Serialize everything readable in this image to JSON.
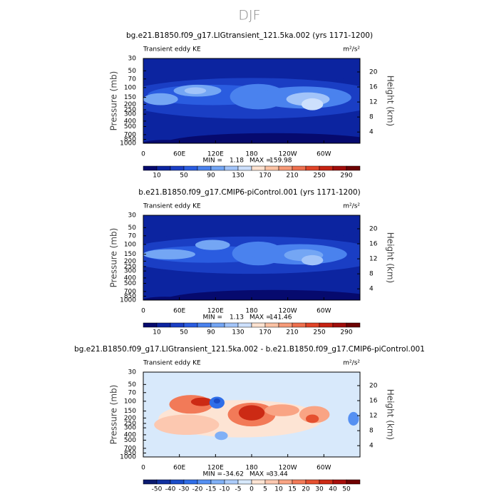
{
  "title": "DJF",
  "chart_data": [
    {
      "type": "contour",
      "title": "bg.e21.B1850.f09_g17.LIGtransient_121.5ka.002 (yrs 1171-1200)",
      "subtitle": "Transient eddy KE",
      "units": "m²/s²",
      "y_label": "Pressure (mb)",
      "y2_label": "Height (km)",
      "xlim": [
        0,
        360
      ],
      "xticks": [
        0,
        {
          "value": 60,
          "label": "60E"
        },
        {
          "value": 120,
          "label": "120E"
        },
        180,
        {
          "value": 240,
          "label": "120W"
        },
        {
          "value": 300,
          "label": "60W"
        }
      ],
      "ylim": [
        1000,
        30
      ],
      "log_y": true,
      "yticks": [
        30,
        50,
        70,
        100,
        150,
        200,
        250,
        300,
        400,
        500,
        700,
        850,
        1000
      ],
      "y2lim": [
        1,
        23.6
      ],
      "y2ticks": [
        4,
        8,
        12,
        16,
        20
      ],
      "min_label": "MIN =",
      "min": 1.18,
      "max_label": "MAX =",
      "max": 159.98,
      "colorbar": {
        "ticks": [
          10,
          50,
          90,
          130,
          170,
          210,
          250,
          290
        ],
        "colors": [
          "#060a6e",
          "#0c24a0",
          "#1a3ec4",
          "#2a5ce0",
          "#4a82ee",
          "#74a6f4",
          "#a2c4f9",
          "#cde0fc",
          "#fde2d0",
          "#fbc2a4",
          "#f69a78",
          "#ee704e",
          "#e04428",
          "#c62212",
          "#a00d0b",
          "#6e0202"
        ]
      }
    },
    {
      "type": "contour",
      "title": "b.e21.B1850.f09_g17.CMIP6-piControl.001 (yrs 1171-1200)",
      "subtitle": "Transient eddy KE",
      "units": "m²/s²",
      "y_label": "Pressure (mb)",
      "y2_label": "Height (km)",
      "xlim": [
        0,
        360
      ],
      "xticks": [
        0,
        {
          "value": 60,
          "label": "60E"
        },
        {
          "value": 120,
          "label": "120E"
        },
        180,
        {
          "value": 240,
          "label": "120W"
        },
        {
          "value": 300,
          "label": "60W"
        }
      ],
      "ylim": [
        1000,
        30
      ],
      "log_y": true,
      "yticks": [
        30,
        50,
        70,
        100,
        150,
        200,
        250,
        300,
        400,
        500,
        700,
        850,
        1000
      ],
      "y2lim": [
        1,
        23.6
      ],
      "y2ticks": [
        4,
        8,
        12,
        16,
        20
      ],
      "min_label": "MIN =",
      "min": 1.13,
      "max_label": "MAX =",
      "max": 141.46,
      "colorbar": {
        "ticks": [
          10,
          50,
          90,
          130,
          170,
          210,
          250,
          290
        ],
        "colors": [
          "#060a6e",
          "#0c24a0",
          "#1a3ec4",
          "#2a5ce0",
          "#4a82ee",
          "#74a6f4",
          "#a2c4f9",
          "#cde0fc",
          "#fde2d0",
          "#fbc2a4",
          "#f69a78",
          "#ee704e",
          "#e04428",
          "#c62212",
          "#a00d0b",
          "#6e0202"
        ]
      }
    },
    {
      "type": "contour",
      "title": "bg.e21.B1850.f09_g17.LIGtransient_121.5ka.002 - b.e21.B1850.f09_g17.CMIP6-piControl.001",
      "subtitle": "Transient eddy KE",
      "units": "m²/s²",
      "y_label": "Pressure (mb)",
      "y2_label": "Height (km)",
      "xlim": [
        0,
        360
      ],
      "xticks": [
        0,
        {
          "value": 60,
          "label": "60E"
        },
        {
          "value": 120,
          "label": "120E"
        },
        180,
        {
          "value": 240,
          "label": "120W"
        },
        {
          "value": 300,
          "label": "60W"
        }
      ],
      "ylim": [
        1000,
        30
      ],
      "log_y": true,
      "yticks": [
        30,
        50,
        70,
        100,
        150,
        200,
        250,
        300,
        400,
        500,
        700,
        850,
        1000
      ],
      "y2lim": [
        1,
        23.6
      ],
      "y2ticks": [
        4,
        8,
        12,
        16,
        20
      ],
      "min_label": "MIN =",
      "min": -34.62,
      "max_label": "MAX =",
      "max": 33.44,
      "colorbar": {
        "ticks": [
          -50,
          -40,
          -30,
          -20,
          -15,
          -10,
          -5,
          0,
          5,
          10,
          15,
          20,
          30,
          40,
          50
        ],
        "colors": [
          "#0a1a70",
          "#1030a0",
          "#1a4cc8",
          "#2f6ee8",
          "#5590f2",
          "#80b0f6",
          "#acccfa",
          "#d8e9fb",
          "#fde4d4",
          "#fcc8b0",
          "#f9a484",
          "#f27a58",
          "#e5502f",
          "#cc2a14",
          "#a80d0a",
          "#700000"
        ]
      }
    }
  ]
}
